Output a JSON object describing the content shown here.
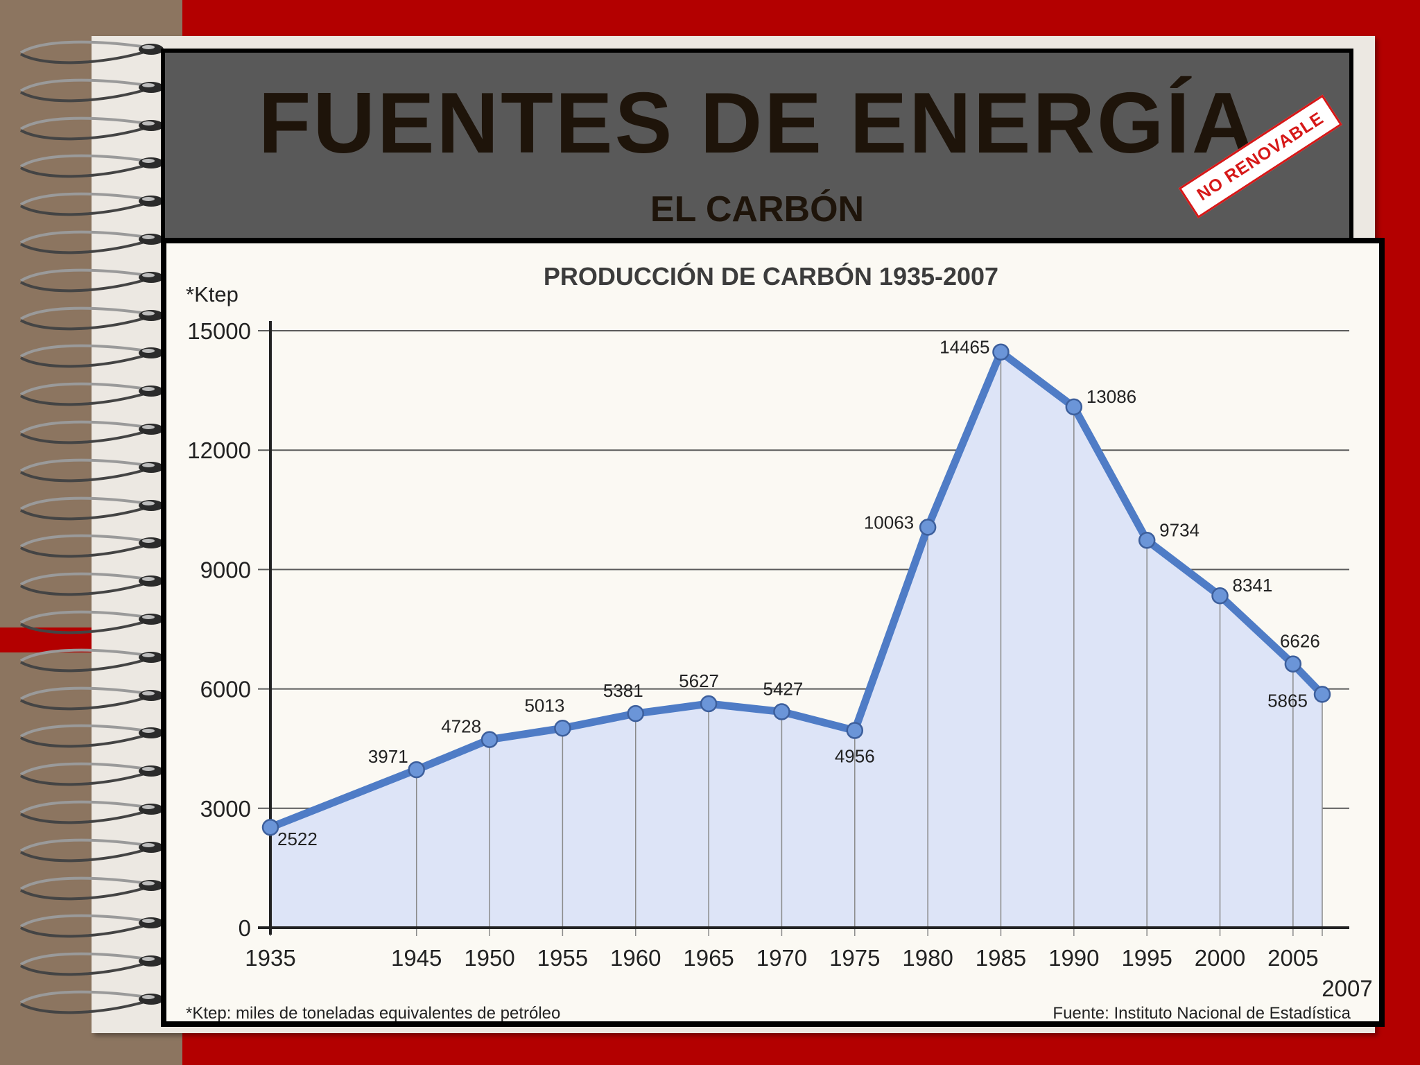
{
  "slide": {
    "title": "FUENTES DE ENERGÍA",
    "subtitle": "EL CARBÓN",
    "stamp": "NO RENOVABLE"
  },
  "colors": {
    "background_red": "#b30000",
    "header_gray": "#595959",
    "title_text": "#1e140a",
    "stamp_red": "#d61818",
    "line_blue": "#4f7cc6",
    "marker_blue": "#6b95d8",
    "area_fill": "#dde4f7"
  },
  "chart_data": {
    "type": "line",
    "title": "PRODUCCIÓN DE CARBÓN 1935-2007",
    "unit_label": "*Ktep",
    "footnote": "*Ktep: miles de toneladas equivalentes de petróleo",
    "source": "Fuente: Instituto Nacional de Estadística",
    "x": [
      1935,
      1945,
      1950,
      1955,
      1960,
      1965,
      1970,
      1975,
      1980,
      1985,
      1990,
      1995,
      2000,
      2005,
      2007
    ],
    "x_tick_labels": [
      "1935",
      "1945",
      "1950",
      "1955",
      "1960",
      "1965",
      "1970",
      "1975",
      "1980",
      "1985",
      "1990",
      "1995",
      "2000",
      "2005",
      "2007"
    ],
    "values": [
      2522,
      3971,
      4728,
      5013,
      5381,
      5627,
      5427,
      4956,
      10063,
      14465,
      13086,
      9734,
      8341,
      6626,
      5865
    ],
    "data_labels": [
      "2522",
      "3971",
      "4728",
      "5013",
      "5381",
      "5627",
      "5427",
      "4956",
      "10063",
      "14465",
      "13086",
      "9734",
      "8341",
      "6626",
      "5865"
    ],
    "y_ticks": [
      0,
      3000,
      6000,
      9000,
      12000,
      15000
    ],
    "y_tick_labels": [
      "0",
      "3000",
      "6000",
      "9000",
      "12000",
      "15000"
    ],
    "ylim": [
      0,
      15000
    ],
    "xlim": [
      1935,
      2007
    ],
    "grid": "horizontal",
    "area_fill": true
  }
}
